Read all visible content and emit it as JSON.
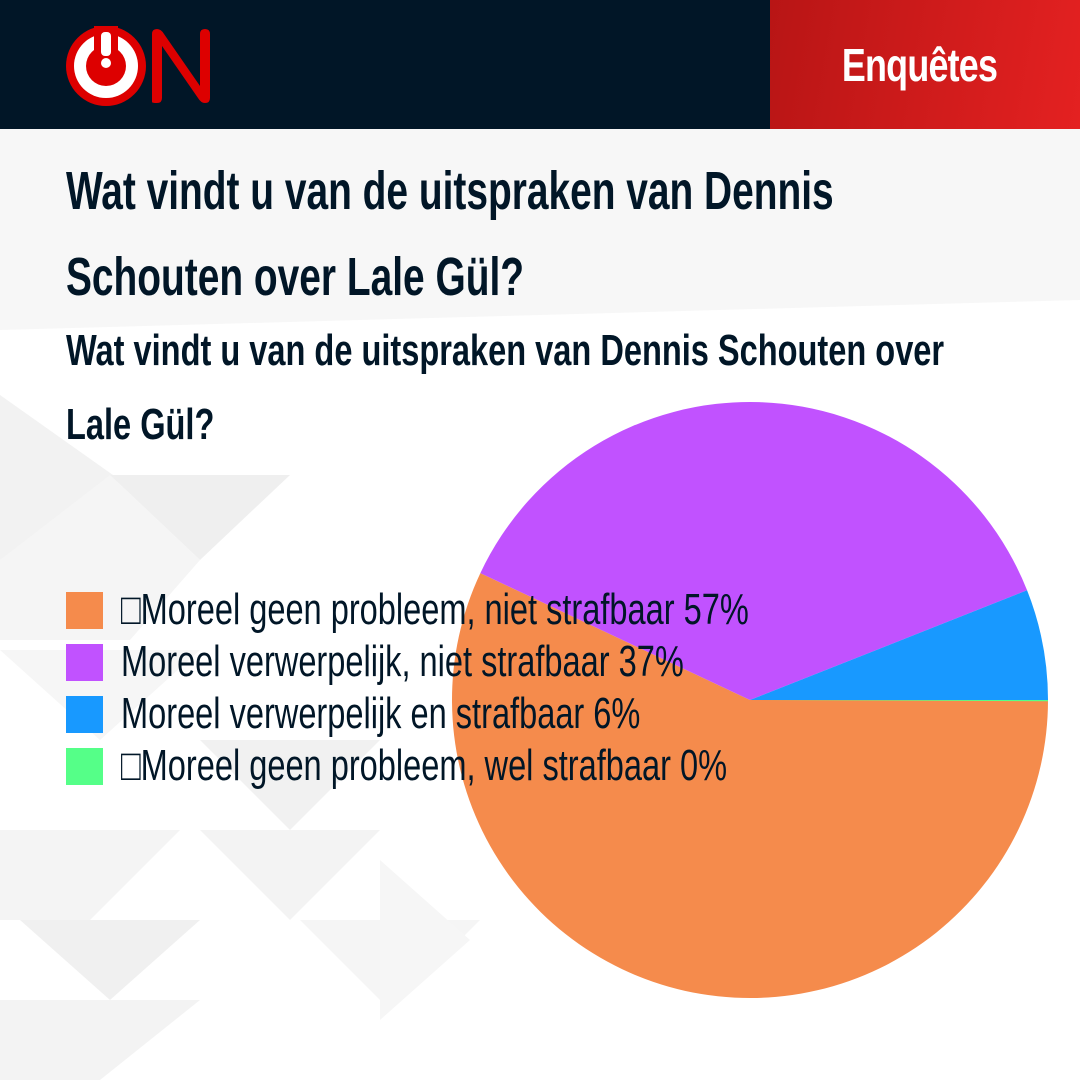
{
  "header": {
    "logo_text": "ON",
    "section_label": "Enquêtes",
    "colors": {
      "header_bg": "#011627",
      "brand_red": "#dd0000",
      "section_bg_start": "#b81515",
      "section_bg_end": "#e42121"
    }
  },
  "poll": {
    "title": "Wat vindt u van de uitspraken van Dennis Schouten over Lale Gül?",
    "subtitle_line1": "Wat vindt u van de uitspraken van Dennis Schouten over",
    "subtitle_line2": "Lale Gül?"
  },
  "legend": [
    {
      "label": "□Moreel geen probleem, niet strafbaar 57%",
      "color": "#f58b4c"
    },
    {
      "label": "Moreel verwerpelijk, niet strafbaar 37%",
      "color": "#c152ff"
    },
    {
      "label": "Moreel verwerpelijk en strafbaar 6%",
      "color": "#1899ff"
    },
    {
      "label": "□Moreel geen probleem, wel strafbaar 0%",
      "color": "#55ff88"
    }
  ],
  "chart_data": {
    "type": "pie",
    "title": "Wat vindt u van de uitspraken van Dennis Schouten over Lale Gül?",
    "categories": [
      "Moreel geen probleem, niet strafbaar",
      "Moreel verwerpelijk, niet strafbaar",
      "Moreel verwerpelijk en strafbaar",
      "Moreel geen probleem, wel strafbaar"
    ],
    "values": [
      57,
      37,
      6,
      0
    ],
    "colors": [
      "#f58b4c",
      "#c152ff",
      "#1899ff",
      "#55ff88"
    ],
    "unit": "%",
    "legend_position": "left-overlay",
    "start_angle": "3 o'clock, clockwise"
  }
}
